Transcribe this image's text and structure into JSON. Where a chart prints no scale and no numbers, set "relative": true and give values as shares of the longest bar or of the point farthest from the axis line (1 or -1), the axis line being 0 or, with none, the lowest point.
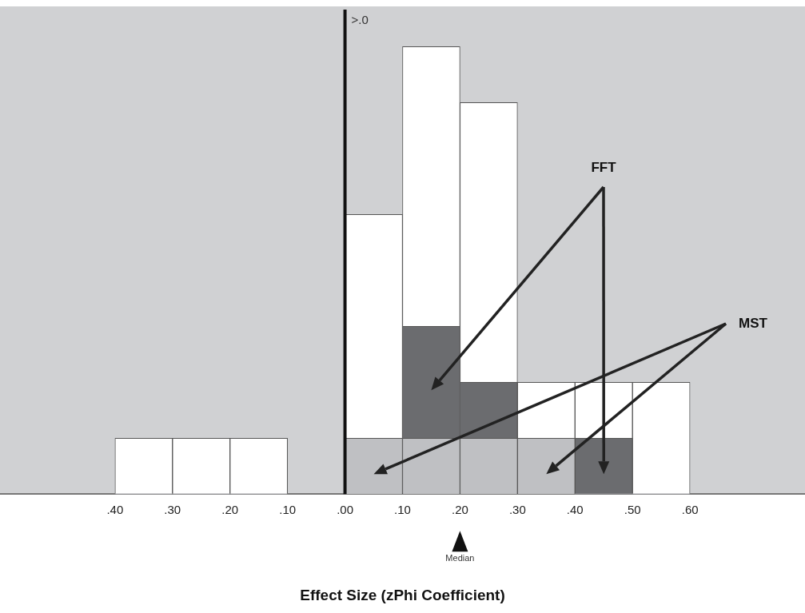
{
  "chart_data": {
    "type": "bar",
    "xlabel": "Effect Size (zPhi Coefficient)",
    "relative": true,
    "stacked": true,
    "grid": false,
    "legend": false,
    "x": [
      -0.35,
      -0.25,
      -0.15,
      0.05,
      0.15,
      0.25,
      0.35,
      0.45,
      0.55
    ],
    "xlim": [
      -0.6,
      0.8
    ],
    "xticks": [
      {
        "value": -0.4,
        "label": ".40"
      },
      {
        "value": -0.3,
        "label": ".30"
      },
      {
        "value": -0.2,
        "label": ".20"
      },
      {
        "value": -0.1,
        "label": ".10"
      },
      {
        "value": 0,
        "label": ".00"
      },
      {
        "value": 0.1,
        "label": ".10"
      },
      {
        "value": 0.2,
        "label": ".20"
      },
      {
        "value": 0.3,
        "label": ".30"
      },
      {
        "value": 0.4,
        "label": ".40"
      },
      {
        "value": 0.5,
        "label": ".50"
      },
      {
        "value": 0.6,
        "label": ".60"
      }
    ],
    "series": [
      {
        "name": "MST",
        "color": "#bfc0c3",
        "values": [
          0,
          0,
          0,
          0.125,
          0.125,
          0.125,
          0.125,
          0,
          0
        ]
      },
      {
        "name": "FFT",
        "color": "#6b6c6f",
        "values": [
          0,
          0,
          0,
          0,
          0.25,
          0.125,
          0,
          0.125,
          0
        ]
      },
      {
        "color": "#ffffff",
        "values": [
          0.125,
          0.125,
          0.125,
          0.5,
          0.625,
          0.625,
          0.125,
          0.125,
          0.25
        ]
      }
    ],
    "ref_lines": [
      {
        "axis": "x",
        "value": 0,
        "label": ">.0"
      }
    ],
    "annotations": [
      "Median"
    ]
  }
}
